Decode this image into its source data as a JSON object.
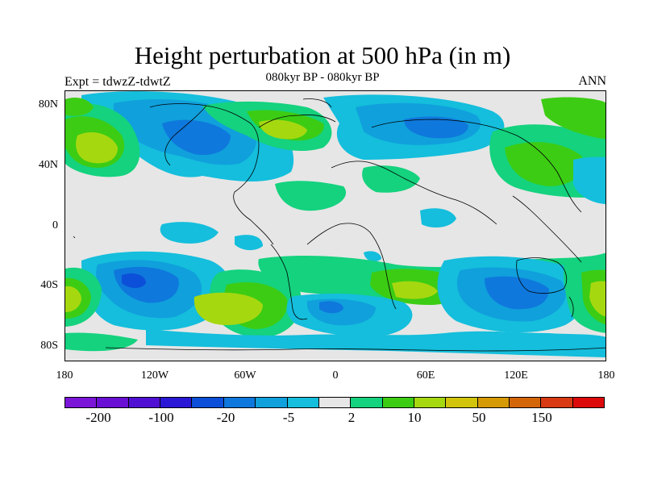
{
  "figure": {
    "title": "Height perturbation at 500 hPa (in m)",
    "subtitle": "080kyr BP - 080kyr BP",
    "left_label": "Expt = tdwzZ-tdwtZ",
    "right_label": "ANN"
  },
  "axes": {
    "lat_labels": [
      "80N",
      "40N",
      "0",
      "40S",
      "80S"
    ],
    "lon_labels": [
      "180",
      "120W",
      "60W",
      "0",
      "60E",
      "120E",
      "180"
    ]
  },
  "colorbar": {
    "colors": [
      "#7B16D9",
      "#6A0FD4",
      "#5010D4",
      "#2A18D6",
      "#0C4FD8",
      "#0F78DC",
      "#10A0DC",
      "#14BEDC",
      "#E6E6E6",
      "#14D27E",
      "#3CCC14",
      "#A6D810",
      "#D2C40A",
      "#D69A06",
      "#D4660A",
      "#D83A14",
      "#DC0A0A"
    ],
    "labels": [
      "-200",
      "-100",
      "-20",
      "-5",
      "2",
      "10",
      "50",
      "150"
    ]
  },
  "map": {
    "background_color": "#E6E6E6"
  }
}
